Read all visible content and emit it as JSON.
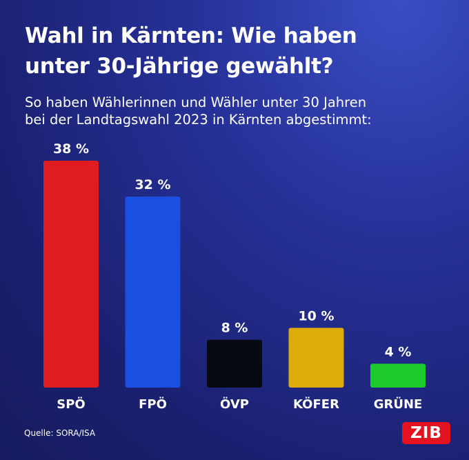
{
  "header": {
    "title_line1": "Wahl in Kärnten: Wie haben",
    "title_line2": "unter 30-Jährige gewählt?",
    "subtitle_line1": "So haben Wählerinnen  und Wähler unter 30 Jahren",
    "subtitle_line2": "bei der Landtagswahl 2023 in Kärnten abgestimmt:"
  },
  "footer": {
    "source": "Quelle: SORA/ISA",
    "logo_text": "ZIB"
  },
  "chart_data": {
    "type": "bar",
    "title": "Wahl in Kärnten: Wie haben unter 30-Jährige gewählt?",
    "categories": [
      "SPÖ",
      "FPÖ",
      "ÖVP",
      "KÖFER",
      "GRÜNE"
    ],
    "values": [
      38,
      32,
      8,
      10,
      4
    ],
    "value_labels": [
      "38 %",
      "32 %",
      "8 %",
      "10 %",
      "4 %"
    ],
    "colors": [
      "#e01b22",
      "#1a4fe0",
      "#070a12",
      "#deab0a",
      "#1ecb2c"
    ],
    "unit": "%",
    "xlabel": "",
    "ylabel": "",
    "ylim": [
      0,
      38
    ],
    "grid": false,
    "legend": "none"
  }
}
